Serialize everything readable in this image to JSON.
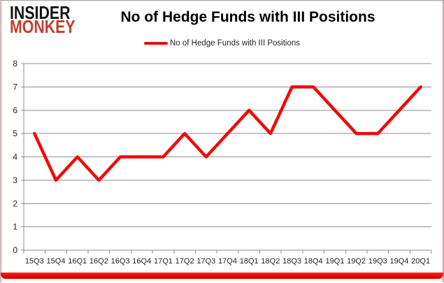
{
  "brand": {
    "line1": "INSIDER",
    "line2": "MONKEY"
  },
  "header": {
    "title": "No of Hedge Funds with III Positions"
  },
  "legend": {
    "label": "No of Hedge Funds with III Positions",
    "swatch_color": "#ee0b0b"
  },
  "chart_data": {
    "type": "line",
    "title": "No of Hedge Funds with III Positions",
    "categories": [
      "15Q3",
      "15Q4",
      "16Q1",
      "16Q2",
      "16Q3",
      "16Q4",
      "17Q1",
      "17Q2",
      "17Q3",
      "17Q4",
      "18Q1",
      "18Q2",
      "18Q3",
      "18Q4",
      "19Q1",
      "19Q2",
      "19Q3",
      "19Q4",
      "20Q1"
    ],
    "series": [
      {
        "name": "No of Hedge Funds with III Positions",
        "color": "#ee0b0b",
        "values": [
          5,
          3,
          4,
          3,
          4,
          4,
          4,
          5,
          4,
          5,
          6,
          5,
          7,
          7,
          6,
          5,
          5,
          6,
          7
        ]
      }
    ],
    "xlabel": "",
    "ylabel": "",
    "ylim": [
      0,
      8
    ],
    "ytick_interval": 1,
    "grid": "horizontal",
    "legend_position": "top"
  },
  "colors": {
    "accent_red": "#ee0b0b",
    "logo_black": "#141414",
    "logo_red": "#c33d2e",
    "grid_gray": "#8e8e8e",
    "axis_text": "#1f1f1f"
  }
}
